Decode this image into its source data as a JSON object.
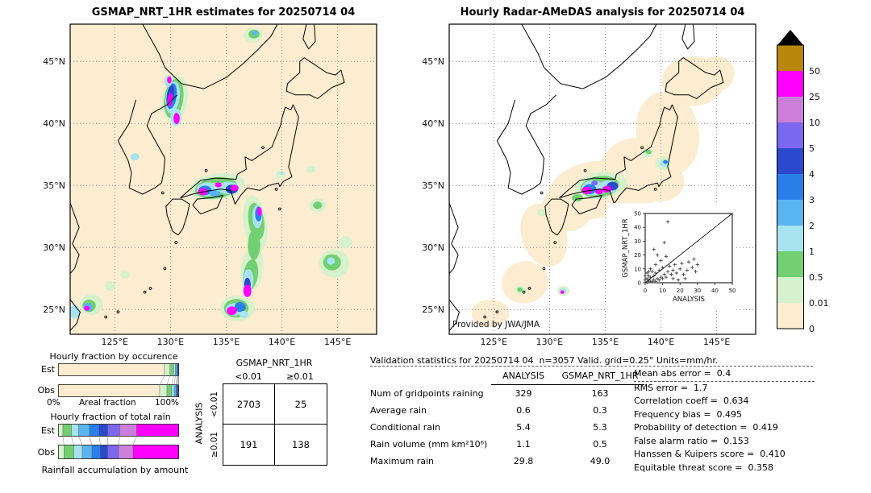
{
  "chart_data": [
    {
      "type": "map",
      "title": "GSMAP_NRT_1HR estimates for 20250714 04",
      "background": "#fcecd0",
      "lon_range": [
        121,
        148.5
      ],
      "lat_range": [
        23,
        48
      ],
      "lon_ticks": [
        "125°E",
        "130°E",
        "135°E",
        "140°E",
        "145°E"
      ],
      "lon_tick_values": [
        125,
        130,
        135,
        140,
        145
      ],
      "lat_ticks": [
        "45°N",
        "40°N",
        "35°N",
        "30°N",
        "25°N"
      ],
      "lat_tick_values": [
        45,
        40,
        35,
        30,
        25
      ],
      "blobs": [
        [
          130.4,
          42.0,
          1.15,
          1.9,
          1,
          8
        ],
        [
          130.3,
          42.0,
          0.85,
          1.6,
          2,
          8
        ],
        [
          130.2,
          42.1,
          0.62,
          1.3,
          3,
          8
        ],
        [
          130.1,
          42.2,
          0.45,
          1.05,
          5,
          8
        ],
        [
          130.0,
          42.3,
          0.3,
          0.8,
          6,
          8
        ],
        [
          129.95,
          41.9,
          0.22,
          0.55,
          9,
          8
        ],
        [
          130.5,
          40.5,
          0.5,
          0.7,
          3,
          0
        ],
        [
          130.55,
          40.4,
          0.28,
          0.45,
          9,
          0
        ],
        [
          129.8,
          43.4,
          0.35,
          0.45,
          3,
          0
        ],
        [
          129.9,
          43.5,
          0.2,
          0.28,
          9,
          0
        ],
        [
          134.2,
          34.9,
          2.5,
          1.05,
          1,
          -8
        ],
        [
          134.1,
          34.8,
          1.9,
          0.85,
          2,
          -8
        ],
        [
          133.4,
          34.7,
          1.05,
          0.55,
          3,
          0
        ],
        [
          135.2,
          34.8,
          0.95,
          0.5,
          3,
          0
        ],
        [
          133.1,
          34.6,
          0.6,
          0.38,
          5,
          0
        ],
        [
          135.5,
          34.7,
          0.55,
          0.36,
          6,
          0
        ],
        [
          132.9,
          34.5,
          0.42,
          0.3,
          9,
          0
        ],
        [
          135.75,
          34.8,
          0.36,
          0.26,
          9,
          0
        ],
        [
          134.3,
          35.05,
          0.3,
          0.2,
          9,
          0
        ],
        [
          134.0,
          34.35,
          0.5,
          0.25,
          4,
          0
        ],
        [
          137.6,
          31.9,
          1.05,
          2.3,
          1,
          -8
        ],
        [
          137.3,
          28.2,
          1.0,
          1.9,
          1,
          8
        ],
        [
          137.5,
          30.2,
          0.55,
          1.2,
          2,
          0
        ],
        [
          137.7,
          32.1,
          0.7,
          1.5,
          2,
          -8
        ],
        [
          137.2,
          27.8,
          0.65,
          1.25,
          2,
          8
        ],
        [
          137.8,
          32.5,
          0.45,
          0.95,
          3,
          0
        ],
        [
          137.0,
          27.4,
          0.45,
          0.85,
          3,
          0
        ],
        [
          137.9,
          32.7,
          0.3,
          0.6,
          5,
          0
        ],
        [
          136.9,
          27.0,
          0.3,
          0.55,
          6,
          0
        ],
        [
          136.9,
          26.5,
          0.36,
          0.5,
          9,
          0
        ],
        [
          138.0,
          32.9,
          0.2,
          0.36,
          9,
          0
        ],
        [
          136.0,
          25.1,
          1.55,
          1.05,
          1,
          0
        ],
        [
          135.9,
          25.1,
          1.1,
          0.75,
          2,
          0
        ],
        [
          135.7,
          25.0,
          0.75,
          0.5,
          3,
          0
        ],
        [
          136.25,
          25.2,
          0.5,
          0.4,
          5,
          0
        ],
        [
          135.5,
          24.9,
          0.45,
          0.35,
          9,
          0
        ],
        [
          136.6,
          24.6,
          0.4,
          0.3,
          3,
          0
        ],
        [
          144.7,
          28.7,
          1.35,
          1.15,
          1,
          0
        ],
        [
          144.5,
          28.8,
          0.8,
          0.65,
          2,
          0
        ],
        [
          144.4,
          28.9,
          0.36,
          0.3,
          3,
          0
        ],
        [
          145.7,
          30.4,
          0.6,
          0.5,
          1,
          0
        ],
        [
          143.2,
          33.4,
          0.75,
          0.55,
          1,
          0
        ],
        [
          143.2,
          33.4,
          0.4,
          0.3,
          2,
          0
        ],
        [
          122.9,
          25.4,
          1.0,
          0.85,
          1,
          0
        ],
        [
          122.7,
          25.3,
          0.6,
          0.5,
          2,
          0
        ],
        [
          122.6,
          25.2,
          0.4,
          0.33,
          4,
          0
        ],
        [
          122.5,
          25.1,
          0.25,
          0.2,
          9,
          0
        ],
        [
          121.4,
          24.8,
          0.45,
          0.55,
          3,
          0
        ],
        [
          124.6,
          26.9,
          0.5,
          0.4,
          1,
          0
        ],
        [
          125.9,
          27.8,
          0.4,
          0.3,
          1,
          0
        ],
        [
          139.9,
          35.9,
          0.45,
          0.3,
          1,
          0
        ],
        [
          140.0,
          36.0,
          0.2,
          0.15,
          3,
          0
        ],
        [
          126.8,
          37.3,
          0.4,
          0.3,
          3,
          0
        ],
        [
          142.6,
          36.3,
          0.4,
          0.3,
          1,
          0
        ],
        [
          137.4,
          47.1,
          0.85,
          0.6,
          1,
          0
        ],
        [
          137.5,
          47.2,
          0.5,
          0.35,
          2,
          0
        ],
        [
          137.6,
          47.3,
          0.25,
          0.2,
          4,
          0
        ]
      ]
    },
    {
      "type": "map",
      "title": "Hourly Radar-AMeDAS analysis for 20250714 04",
      "background": "#ffffff",
      "credit": "Provided by JWA/JMA",
      "lon_range": [
        121,
        148.5
      ],
      "lat_range": [
        23,
        48
      ],
      "lon_ticks": [
        "125°E",
        "130°E",
        "135°E",
        "140°E",
        "145°E"
      ],
      "lon_tick_values": [
        125,
        130,
        135,
        140,
        145
      ],
      "lat_ticks": [
        "45°N",
        "40°N",
        "35°N",
        "30°N",
        "25°N"
      ],
      "lat_tick_values": [
        45,
        40,
        35,
        30,
        25
      ],
      "coverage": [
        [
          133.8,
          34.6,
          4.0,
          2.3,
          0,
          -12
        ],
        [
          137.6,
          36.2,
          3.2,
          2.6,
          0,
          -25
        ],
        [
          140.6,
          39.2,
          2.8,
          3.4,
          0,
          -10
        ],
        [
          142.9,
          43.4,
          2.8,
          2.0,
          0,
          0
        ],
        [
          145.0,
          44.0,
          1.6,
          1.4,
          0,
          0
        ],
        [
          129.5,
          31.0,
          2.0,
          2.6,
          0,
          -18
        ],
        [
          127.8,
          27.2,
          2.1,
          1.7,
          0,
          -12
        ],
        [
          124.7,
          24.7,
          1.7,
          1.1,
          0,
          0
        ],
        [
          131.6,
          33.2,
          2.3,
          1.9,
          0,
          0
        ],
        [
          136.9,
          33.8,
          2.6,
          1.6,
          0,
          -18
        ],
        [
          139.9,
          35.3,
          2.2,
          1.6,
          0,
          0
        ]
      ],
      "blobs": [
        [
          134.6,
          35.0,
          2.35,
          1.05,
          1,
          -8
        ],
        [
          134.5,
          34.9,
          1.75,
          0.85,
          2,
          -8
        ],
        [
          133.9,
          34.8,
          1.0,
          0.6,
          3,
          0
        ],
        [
          135.3,
          34.9,
          0.85,
          0.5,
          3,
          0
        ],
        [
          133.6,
          34.7,
          0.6,
          0.4,
          5,
          0
        ],
        [
          135.65,
          34.95,
          0.5,
          0.35,
          6,
          0
        ],
        [
          133.35,
          34.6,
          0.45,
          0.3,
          9,
          0
        ],
        [
          135.15,
          34.7,
          0.4,
          0.28,
          9,
          0
        ],
        [
          134.45,
          34.5,
          0.35,
          0.22,
          9,
          0
        ],
        [
          134.05,
          35.2,
          0.3,
          0.2,
          7,
          0
        ],
        [
          140.2,
          36.8,
          0.7,
          0.55,
          1,
          0
        ],
        [
          140.3,
          36.8,
          0.4,
          0.3,
          3,
          0
        ],
        [
          140.4,
          36.9,
          0.2,
          0.15,
          5,
          0
        ],
        [
          138.8,
          37.6,
          0.5,
          0.35,
          1,
          0
        ],
        [
          138.9,
          37.7,
          0.25,
          0.18,
          2,
          0
        ],
        [
          131.25,
          26.5,
          0.55,
          0.4,
          1,
          0
        ],
        [
          131.2,
          26.5,
          0.3,
          0.22,
          3,
          0
        ],
        [
          131.15,
          26.4,
          0.18,
          0.14,
          9,
          0
        ],
        [
          127.4,
          26.6,
          0.5,
          0.35,
          1,
          0
        ],
        [
          127.35,
          26.6,
          0.25,
          0.18,
          2,
          0
        ],
        [
          129.3,
          32.8,
          0.4,
          0.3,
          1,
          0
        ],
        [
          132.5,
          34.0,
          0.5,
          0.3,
          2,
          0
        ]
      ],
      "inset": {
        "type": "scatter",
        "xlabel": "ANALYSIS",
        "ylabel": "GSMAP_NRT_1HR",
        "xlim": [
          0,
          50
        ],
        "ylim": [
          0,
          50
        ],
        "ticks": [
          0,
          10,
          20,
          30,
          40,
          50
        ],
        "points": [
          [
            1,
            0
          ],
          [
            2,
            1
          ],
          [
            3,
            1
          ],
          [
            0,
            2
          ],
          [
            1,
            3
          ],
          [
            2,
            2
          ],
          [
            4,
            1
          ],
          [
            5,
            2
          ],
          [
            3,
            4
          ],
          [
            6,
            1
          ],
          [
            7,
            3
          ],
          [
            2,
            5
          ],
          [
            5,
            5
          ],
          [
            8,
            2
          ],
          [
            9,
            4
          ],
          [
            6,
            7
          ],
          [
            10,
            3
          ],
          [
            4,
            8
          ],
          [
            11,
            6
          ],
          [
            8,
            9
          ],
          [
            12,
            4
          ],
          [
            13,
            8
          ],
          [
            10,
            11
          ],
          [
            15,
            6
          ],
          [
            14,
            12
          ],
          [
            16,
            9
          ],
          [
            18,
            7
          ],
          [
            17,
            13
          ],
          [
            20,
            10
          ],
          [
            22,
            6
          ],
          [
            21,
            14
          ],
          [
            24,
            9
          ],
          [
            25,
            15
          ],
          [
            27,
            11
          ],
          [
            28,
            17
          ],
          [
            29,
            8
          ],
          [
            30,
            13
          ],
          [
            3,
            10
          ],
          [
            1,
            7
          ],
          [
            6,
            13
          ],
          [
            9,
            16
          ],
          [
            12,
            19
          ],
          [
            7,
            20
          ],
          [
            5,
            24
          ],
          [
            11,
            29
          ],
          [
            13,
            44
          ],
          [
            2,
            8
          ],
          [
            0,
            5
          ],
          [
            16,
            3
          ],
          [
            19,
            2
          ],
          [
            23,
            3
          ]
        ]
      }
    },
    {
      "type": "colorbar",
      "tick_labels": [
        "50",
        "25",
        "10",
        "5",
        "4",
        "3",
        "2",
        "1",
        "0.5",
        "0.01",
        "0"
      ],
      "colors_top_to_bottom": [
        "#b8860b",
        "#ff00ff",
        "#cc7fd8",
        "#7b68ee",
        "#2b49cc",
        "#2a7fe8",
        "#5ab4f0",
        "#a8e4f0",
        "#72cf72",
        "#d6f2cc",
        "#fcecd0"
      ],
      "overflow_marker": "black-triangle-up",
      "overflow_color": "#000000",
      "units": "mm/hr"
    },
    {
      "type": "stacked-bar-pair",
      "title": "Hourly fraction by occurence",
      "rows": [
        "Est",
        "Obs"
      ],
      "axis": {
        "left": "0%",
        "center": "Areal fraction",
        "right": "100%"
      },
      "series": {
        "Est": [
          [
            0,
            0.88
          ],
          [
            1,
            0.045
          ],
          [
            2,
            0.03
          ],
          [
            3,
            0.015
          ],
          [
            4,
            0.012
          ],
          [
            5,
            0.008
          ],
          [
            6,
            0.004
          ],
          [
            7,
            0.003
          ],
          [
            8,
            0.002
          ],
          [
            9,
            0.001
          ]
        ],
        "Obs": [
          [
            0,
            0.84
          ],
          [
            1,
            0.06
          ],
          [
            2,
            0.04
          ],
          [
            3,
            0.02
          ],
          [
            4,
            0.015
          ],
          [
            5,
            0.01
          ],
          [
            6,
            0.006
          ],
          [
            7,
            0.004
          ],
          [
            8,
            0.003
          ],
          [
            9,
            0.002
          ]
        ]
      }
    },
    {
      "type": "stacked-bar-pair",
      "title": "Hourly fraction of total rain",
      "caption": "Rainfall accumulation by amount",
      "rows": [
        "Est",
        "Obs"
      ],
      "series": {
        "Est": [
          [
            1,
            0.04
          ],
          [
            2,
            0.07
          ],
          [
            3,
            0.06
          ],
          [
            4,
            0.09
          ],
          [
            5,
            0.08
          ],
          [
            6,
            0.07
          ],
          [
            7,
            0.1
          ],
          [
            8,
            0.14
          ],
          [
            9,
            0.35
          ]
        ],
        "Obs": [
          [
            1,
            0.05
          ],
          [
            2,
            0.08
          ],
          [
            3,
            0.07
          ],
          [
            4,
            0.08
          ],
          [
            5,
            0.07
          ],
          [
            6,
            0.06
          ],
          [
            7,
            0.09
          ],
          [
            8,
            0.12
          ],
          [
            9,
            0.38
          ]
        ]
      }
    },
    {
      "type": "table",
      "name": "contingency",
      "col_group": "GSMAP_NRT_1HR",
      "row_group": "ANALYSIS",
      "col_labels": [
        "<0.01",
        "≥0.01"
      ],
      "row_labels": [
        "<0.01",
        "≥0.01"
      ],
      "values": [
        [
          "2703",
          "25"
        ],
        [
          "191",
          "138"
        ]
      ]
    },
    {
      "type": "table",
      "name": "validation-statistics",
      "title": "Validation statistics for 20250714 04  n=3057 Valid. grid=0.25° Units=mm/hr.",
      "columns": [
        "ANALYSIS",
        "GSMAP_NRT_1HR"
      ],
      "rows": [
        {
          "label": "Num of gridpoints raining",
          "analysis": "329",
          "gsmap": "163"
        },
        {
          "label": "Average rain",
          "analysis": "0.6",
          "gsmap": "0.3"
        },
        {
          "label": "Conditional rain",
          "analysis": "5.4",
          "gsmap": "5.3"
        },
        {
          "label": "Rain volume (mm km²10⁶)",
          "analysis": "1.1",
          "gsmap": "0.5"
        },
        {
          "label": "Maximum rain",
          "analysis": "29.8",
          "gsmap": "49.0"
        }
      ]
    },
    {
      "type": "score-list",
      "items": [
        {
          "label": "Mean abs error",
          "value": "0.4"
        },
        {
          "label": "RMS error",
          "value": "1.7"
        },
        {
          "label": "Correlation coeff",
          "value": "0.634"
        },
        {
          "label": "Frequency bias",
          "value": "0.495"
        },
        {
          "label": "Probability of detection",
          "value": "0.419"
        },
        {
          "label": "False alarm ratio",
          "value": "0.153"
        },
        {
          "label": "Hanssen & Kuipers score",
          "value": "0.410"
        },
        {
          "label": "Equitable threat score",
          "value": "0.358"
        }
      ]
    }
  ]
}
